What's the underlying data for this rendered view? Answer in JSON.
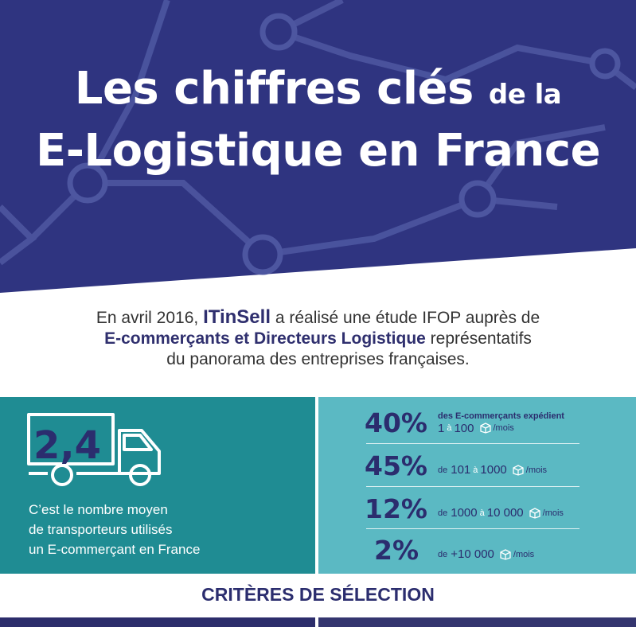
{
  "colors": {
    "navy": "#2f3480",
    "teal_dark": "#1f8c93",
    "teal_light": "#5bb9c3",
    "ink": "#2b2d6e"
  },
  "header": {
    "title_part1": "Les chiffres clés",
    "title_part2": "de la",
    "title_line2": "E-Logistique en France"
  },
  "intro": {
    "t1": "En avril 2016, ",
    "brand": "ITinSell",
    "t2": " a réalisé une étude IFOP auprès de",
    "bold2": "E-commerçants et Directeurs Logistique",
    "t3": " représentatifs",
    "t4": "du panorama des entreprises françaises."
  },
  "carriers": {
    "value": "2,4",
    "caption1": "C’est le nombre moyen",
    "caption2": "de transporteurs utilisés",
    "caption3": "un E-commerçant en France"
  },
  "stats": [
    {
      "pct": "40%",
      "head": "des E-commerçants expédient",
      "from": "1",
      "sep": "à",
      "to": "100",
      "unit": "/mois"
    },
    {
      "pct": "45%",
      "prefix": "de",
      "from": "101",
      "sep": "à",
      "to": "1000",
      "unit": "/mois"
    },
    {
      "pct": "12%",
      "prefix": "de",
      "from": "1000",
      "sep": "à",
      "to": "10 000",
      "unit": "/mois"
    },
    {
      "pct": "2%",
      "prefix": "de",
      "to": "+10 000",
      "unit": "/mois"
    }
  ],
  "section": {
    "title": "CRITÈRES DE SÉLECTION"
  },
  "icons": {
    "truck": "truck-icon",
    "box": "package-icon"
  }
}
